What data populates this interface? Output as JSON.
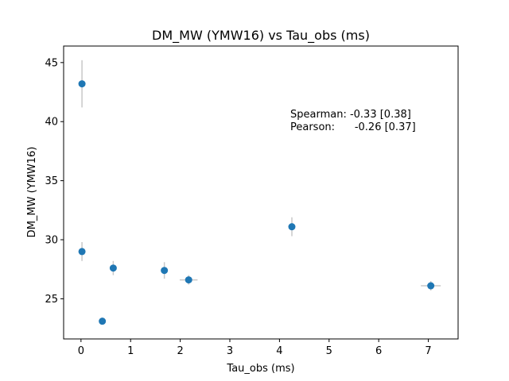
{
  "chart_data": {
    "type": "scatter",
    "title": "DM_MW (YMW16) vs Tau_obs (ms)",
    "xlabel": "Tau_obs (ms)",
    "ylabel": "DM_MW (YMW16)",
    "xlim": [
      -0.35,
      7.6
    ],
    "ylim": [
      21.6,
      46.4
    ],
    "xticks": [
      0,
      1,
      2,
      3,
      4,
      5,
      6,
      7
    ],
    "yticks": [
      25,
      30,
      35,
      40,
      45
    ],
    "grid": false,
    "marker_color": "#1f77b4",
    "errorbar_color": "#c8c8c8",
    "points": [
      {
        "x": 0.02,
        "y": 43.2,
        "yerr": 2.0,
        "xerr": 0.0
      },
      {
        "x": 0.02,
        "y": 29.0,
        "yerr": 0.8,
        "xerr": 0.0
      },
      {
        "x": 0.43,
        "y": 23.1,
        "yerr": 0.25,
        "xerr": 0.05
      },
      {
        "x": 0.65,
        "y": 27.6,
        "yerr": 0.6,
        "xerr": 0.04
      },
      {
        "x": 1.68,
        "y": 27.4,
        "yerr": 0.7,
        "xerr": 0.04
      },
      {
        "x": 2.17,
        "y": 26.6,
        "yerr": 0.4,
        "xerr": 0.18
      },
      {
        "x": 4.25,
        "y": 31.1,
        "yerr": 0.8,
        "xerr": 0.05
      },
      {
        "x": 7.05,
        "y": 26.1,
        "yerr": 0.4,
        "xerr": 0.2
      }
    ],
    "annotations": [
      {
        "text": "Spearman: -0.33 [0.38]"
      },
      {
        "text": "Pearson:      -0.26 [0.37]"
      }
    ]
  }
}
